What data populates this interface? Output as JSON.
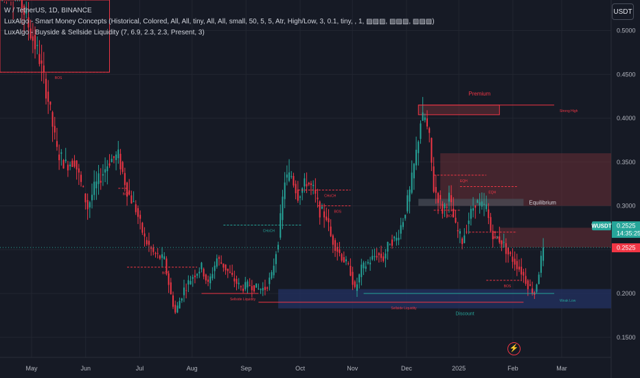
{
  "header": {
    "symbol_line": "W / TetherUS, 1D, BINANCE",
    "indicator_1": "LuxAlgo - Smart Money Concepts (Historical, Colored, All, All, tiny, All, All, small, 50, 5, 5, Atr, High/Low, 3, 0.1, tiny, , 1, ▨▨▨, ▨▨▨, ▨▨▨)",
    "indicator_2": "LuxAlgo - Buyside & Sellside Liquidity (7, 6.9, 2.3, 2.3, Present, 3)"
  },
  "toolbar": {
    "currency_button": "USDT",
    "flash_icon": "lightning-icon"
  },
  "colors": {
    "background": "#161a25",
    "up": "#26a69a",
    "down": "#f23645",
    "premium_zone": "#6b2f37",
    "discount_zone": "#233262",
    "equilibrium_zone": "#4a4e58"
  },
  "chart_data": {
    "type": "candlestick",
    "title": "W / TetherUS, 1D, BINANCE",
    "ylim": [
      0.13,
      0.535
    ],
    "y_ticks": [
      "0.5000",
      "0.4500",
      "0.4000",
      "0.3500",
      "0.3000",
      "0.2500",
      "0.2000",
      "0.1500"
    ],
    "x_ticks": [
      "May",
      "Jun",
      "Jul",
      "Aug",
      "Sep",
      "Oct",
      "Nov",
      "Dec",
      "2025",
      "Feb",
      "Mar"
    ],
    "last_price": {
      "symbol": "WUSDT",
      "price": "0.2525",
      "countdown": "14:35:25",
      "price_tag": "0.2525",
      "value": 0.2525
    },
    "price_path": [
      [
        0,
        0.556
      ],
      [
        8,
        0.546
      ],
      [
        14,
        0.498
      ],
      [
        18,
        0.468
      ],
      [
        22,
        0.421
      ],
      [
        26,
        0.362
      ],
      [
        30,
        0.347
      ],
      [
        34,
        0.352
      ],
      [
        40,
        0.298
      ],
      [
        43,
        0.32
      ],
      [
        47,
        0.338
      ],
      [
        50,
        0.352
      ],
      [
        54,
        0.357
      ],
      [
        58,
        0.318
      ],
      [
        62,
        0.296
      ],
      [
        66,
        0.262
      ],
      [
        70,
        0.246
      ],
      [
        75,
        0.238
      ],
      [
        78,
        0.198
      ],
      [
        80,
        0.178
      ],
      [
        84,
        0.205
      ],
      [
        88,
        0.22
      ],
      [
        92,
        0.23
      ],
      [
        95,
        0.21
      ],
      [
        99,
        0.24
      ],
      [
        102,
        0.232
      ],
      [
        106,
        0.218
      ],
      [
        110,
        0.206
      ],
      [
        114,
        0.21
      ],
      [
        118,
        0.205
      ],
      [
        121,
        0.206
      ],
      [
        124,
        0.22
      ],
      [
        127,
        0.262
      ],
      [
        130,
        0.33
      ],
      [
        133,
        0.335
      ],
      [
        136,
        0.312
      ],
      [
        140,
        0.328
      ],
      [
        143,
        0.318
      ],
      [
        146,
        0.294
      ],
      [
        149,
        0.288
      ],
      [
        151,
        0.265
      ],
      [
        154,
        0.25
      ],
      [
        157,
        0.238
      ],
      [
        160,
        0.225
      ],
      [
        162,
        0.203
      ],
      [
        165,
        0.228
      ],
      [
        168,
        0.235
      ],
      [
        172,
        0.245
      ],
      [
        175,
        0.24
      ],
      [
        178,
        0.26
      ],
      [
        181,
        0.262
      ],
      [
        184,
        0.285
      ],
      [
        187,
        0.315
      ],
      [
        190,
        0.36
      ],
      [
        192,
        0.397
      ],
      [
        194,
        0.4
      ],
      [
        196,
        0.375
      ],
      [
        198,
        0.32
      ],
      [
        200,
        0.31
      ],
      [
        202,
        0.295
      ],
      [
        205,
        0.31
      ],
      [
        208,
        0.275
      ],
      [
        211,
        0.26
      ],
      [
        214,
        0.285
      ],
      [
        217,
        0.305
      ],
      [
        219,
        0.3
      ],
      [
        222,
        0.298
      ],
      [
        224,
        0.272
      ],
      [
        226,
        0.265
      ],
      [
        229,
        0.26
      ],
      [
        232,
        0.245
      ],
      [
        235,
        0.236
      ],
      [
        238,
        0.225
      ],
      [
        241,
        0.21
      ],
      [
        244,
        0.2
      ],
      [
        246,
        0.225
      ],
      [
        248,
        0.2525
      ]
    ],
    "zones": [
      {
        "label": "Premium",
        "from": [
          191,
          0.404
        ],
        "to": [
          228,
          0.415
        ]
      },
      {
        "label": "",
        "from": [
          201,
          0.3
        ],
        "to": [
          279,
          0.36
        ]
      },
      {
        "label": "Equilibrium",
        "from": [
          191,
          0.3
        ],
        "to": [
          239,
          0.308
        ]
      },
      {
        "label": "",
        "from": [
          228,
          0.2525
        ],
        "to": [
          279,
          0.275
        ]
      },
      {
        "label": "Discount",
        "from": [
          127,
          0.183
        ],
        "to": [
          279,
          0.205
        ]
      }
    ],
    "levels": [
      {
        "label": "BOS",
        "x1": 0,
        "x2": 50,
        "y": 0.4525,
        "color": "down"
      },
      {
        "label": "BOS",
        "x1": 54,
        "x2": 58,
        "y": 0.32,
        "color": "down"
      },
      {
        "label": "BOS",
        "x1": 58,
        "x2": 90,
        "y": 0.23,
        "color": "down"
      },
      {
        "label": "CHoCH",
        "x1": 102,
        "x2": 138,
        "y": 0.278,
        "color": "up"
      },
      {
        "label": "Sellside Liquidity",
        "x1": 92,
        "x2": 118,
        "y": 0.2,
        "color": "down"
      },
      {
        "label": "Sellside Liquidity",
        "x1": 118,
        "x2": 239,
        "y": 0.19,
        "color": "down"
      },
      {
        "label": "CHoCH",
        "x1": 136,
        "x2": 160,
        "y": 0.318,
        "color": "down"
      },
      {
        "label": "BOS",
        "x1": 145,
        "x2": 160,
        "y": 0.3,
        "color": "down"
      },
      {
        "label": "Strong High",
        "x1": 191,
        "x2": 253,
        "y": 0.415,
        "color": "down"
      },
      {
        "label": "EQH",
        "x1": 198,
        "x2": 222,
        "y": 0.335,
        "color": "down"
      },
      {
        "label": "EQH",
        "x1": 210,
        "x2": 236,
        "y": 0.322,
        "color": "down"
      },
      {
        "label": "BOS",
        "x1": 198,
        "x2": 210,
        "y": 0.295,
        "color": "down"
      },
      {
        "label": "BOS",
        "x1": 214,
        "x2": 236,
        "y": 0.27,
        "color": "down"
      },
      {
        "label": "BOS",
        "x1": 222,
        "x2": 238,
        "y": 0.215,
        "color": "down"
      },
      {
        "label": "Weak Low",
        "x1": 166,
        "x2": 253,
        "y": 0.2,
        "color": "up"
      }
    ]
  }
}
